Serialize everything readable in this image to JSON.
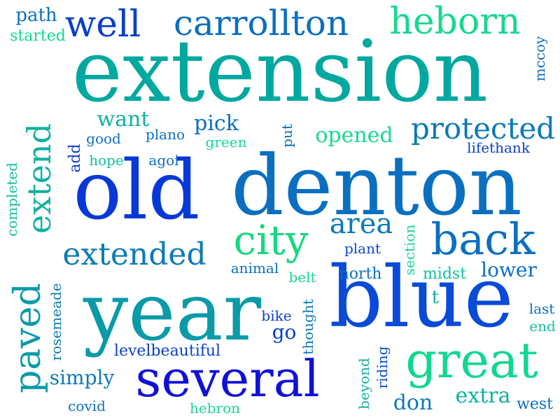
{
  "words": [
    {
      "text": "extension",
      "color": "#00a8a0"
    },
    {
      "text": "denton",
      "color": "#0a6fc0"
    },
    {
      "text": "old",
      "color": "#0838d8"
    },
    {
      "text": "blue",
      "color": "#0a4ad8"
    },
    {
      "text": "year",
      "color": "#0a9aa8"
    },
    {
      "text": "several",
      "color": "#1010d8"
    },
    {
      "text": "great",
      "color": "#10d890"
    },
    {
      "text": "carrollton",
      "color": "#0a6fc0"
    },
    {
      "text": "heborn",
      "color": "#18d890"
    },
    {
      "text": "well",
      "color": "#0a3fc8"
    },
    {
      "text": "paved",
      "color": "#0a9aa8"
    },
    {
      "text": "extend",
      "color": "#10b0a0"
    },
    {
      "text": "back",
      "color": "#0a6fc0"
    },
    {
      "text": "city",
      "color": "#18d880"
    },
    {
      "text": "extended",
      "color": "#0a7ab8"
    },
    {
      "text": "protected",
      "color": "#0a7ab8"
    },
    {
      "text": "area",
      "color": "#0a7ab8"
    },
    {
      "text": "opened",
      "color": "#18d890"
    },
    {
      "text": "pick",
      "color": "#0a6fc0"
    },
    {
      "text": "want",
      "color": "#10b0a0"
    },
    {
      "text": "path",
      "color": "#0a6fc0"
    },
    {
      "text": "started",
      "color": "#10d890"
    },
    {
      "text": "mccoy",
      "color": "#0a6fc0"
    },
    {
      "text": "good",
      "color": "#0a6fc0"
    },
    {
      "text": "plano",
      "color": "#0a6fc0"
    },
    {
      "text": "green",
      "color": "#18d890"
    },
    {
      "text": "put",
      "color": "#0a6fc0"
    },
    {
      "text": "lifethank",
      "color": "#0a3fc8"
    },
    {
      "text": "add",
      "color": "#0a3fc8"
    },
    {
      "text": "hope",
      "color": "#10c0a0"
    },
    {
      "text": "agoi",
      "color": "#0a6fc0"
    },
    {
      "text": "completed",
      "color": "#10c0a0"
    },
    {
      "text": "plant",
      "color": "#0a4ad8"
    },
    {
      "text": "section",
      "color": "#18d890"
    },
    {
      "text": "animal",
      "color": "#0a6fc0"
    },
    {
      "text": "north",
      "color": "#0a6fc0"
    },
    {
      "text": "midst",
      "color": "#10c0a0"
    },
    {
      "text": "lower",
      "color": "#0a6fc0"
    },
    {
      "text": "belt",
      "color": "#10d890"
    },
    {
      "text": "t",
      "color": "#10b0a0"
    },
    {
      "text": "last",
      "color": "#0a6fc0"
    },
    {
      "text": "end",
      "color": "#10c0a0"
    },
    {
      "text": "bike",
      "color": "#0a3fc8"
    },
    {
      "text": "go",
      "color": "#0a3fc8"
    },
    {
      "text": "rosemeade",
      "color": "#0a7ab8"
    },
    {
      "text": "thought",
      "color": "#0a7ab8"
    },
    {
      "text": "levelbeautiful",
      "color": "#0a3fc8"
    },
    {
      "text": "simply",
      "color": "#0a7ab8"
    },
    {
      "text": "beyond",
      "color": "#10b0a0"
    },
    {
      "text": "riding",
      "color": "#0a4ad8"
    },
    {
      "text": "extra",
      "color": "#10b0a0"
    },
    {
      "text": "west",
      "color": "#0a6fc0"
    },
    {
      "text": "don",
      "color": "#0a7ab8"
    },
    {
      "text": "covid",
      "color": "#0a6fc0"
    },
    {
      "text": "hebron",
      "color": "#18d890"
    }
  ]
}
